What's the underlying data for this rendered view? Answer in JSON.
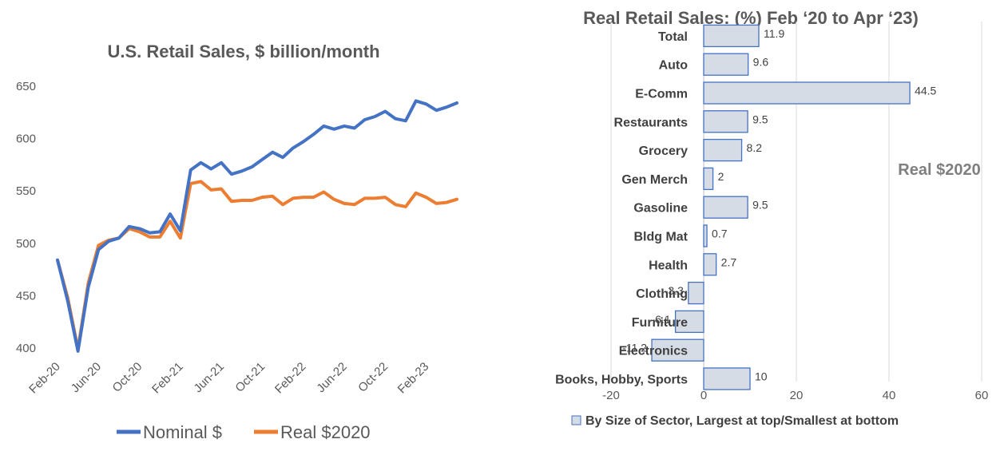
{
  "chart_data": [
    {
      "type": "line",
      "title": "U.S. Retail Sales, $ billion/month",
      "xlabel": "",
      "ylabel": "",
      "ylim": [
        400,
        650
      ],
      "yticks": [
        "400",
        "450",
        "500",
        "550",
        "600",
        "650"
      ],
      "x_tick_labels": [
        "Feb-20",
        "Jun-20",
        "Oct-20",
        "Feb-21",
        "Jun-21",
        "Oct-21",
        "Feb-22",
        "Jun-22",
        "Oct-22",
        "Feb-23"
      ],
      "grid": false,
      "legend": "bottom",
      "series": [
        {
          "name": "Nominal $",
          "color": "#4472C4",
          "values": [
            484,
            445,
            397,
            458,
            494,
            502,
            505,
            516,
            514,
            510,
            511,
            528,
            512,
            570,
            577,
            571,
            577,
            566,
            569,
            573,
            580,
            587,
            582,
            591,
            597,
            604,
            612,
            609,
            612,
            610,
            618,
            621,
            626,
            619,
            617,
            636,
            633,
            627,
            630,
            634
          ]
        },
        {
          "name": "Real $2020",
          "color": "#ED7D31",
          "values": [
            484,
            448,
            399,
            462,
            498,
            503,
            505,
            514,
            511,
            506,
            506,
            521,
            505,
            557,
            559,
            551,
            552,
            540,
            541,
            541,
            544,
            545,
            537,
            543,
            544,
            544,
            549,
            542,
            538,
            537,
            543,
            543,
            544,
            537,
            535,
            548,
            544,
            538,
            539,
            542
          ]
        }
      ]
    },
    {
      "type": "bar",
      "orientation": "horizontal",
      "title": "Real Retail Sales: (%) Feb ‘20 to Apr ‘23)",
      "xlim": [
        -20,
        60
      ],
      "xticks": [
        "-20",
        "0",
        "20",
        "40",
        "60"
      ],
      "grid": true,
      "legend": "bottom",
      "legend_label": "By Size of Sector, Largest at top/Smallest at bottom",
      "annotation": "Real $2020",
      "bar_fill": "#D6DCE5",
      "bar_stroke": "#4472C4",
      "categories": [
        "Total",
        "Auto",
        "E-Comm",
        "Restaurants",
        "Grocery",
        "Gen Merch",
        "Gasoline",
        "Bldg Mat",
        "Health",
        "Clothing",
        "Furniture",
        "Electronics",
        "Books, Hobby, Sports"
      ],
      "values": [
        11.9,
        9.6,
        44.5,
        9.5,
        8.2,
        2,
        9.5,
        0.7,
        2.7,
        -3.3,
        -6.1,
        -11.2,
        10
      ],
      "data_labels": [
        "11.9",
        "9.6",
        "44.5",
        "9.5",
        "8.2",
        "2",
        "9.5",
        "0.7",
        "2.7",
        "-3.3",
        "-6.1",
        "-11.2",
        "10"
      ]
    }
  ]
}
